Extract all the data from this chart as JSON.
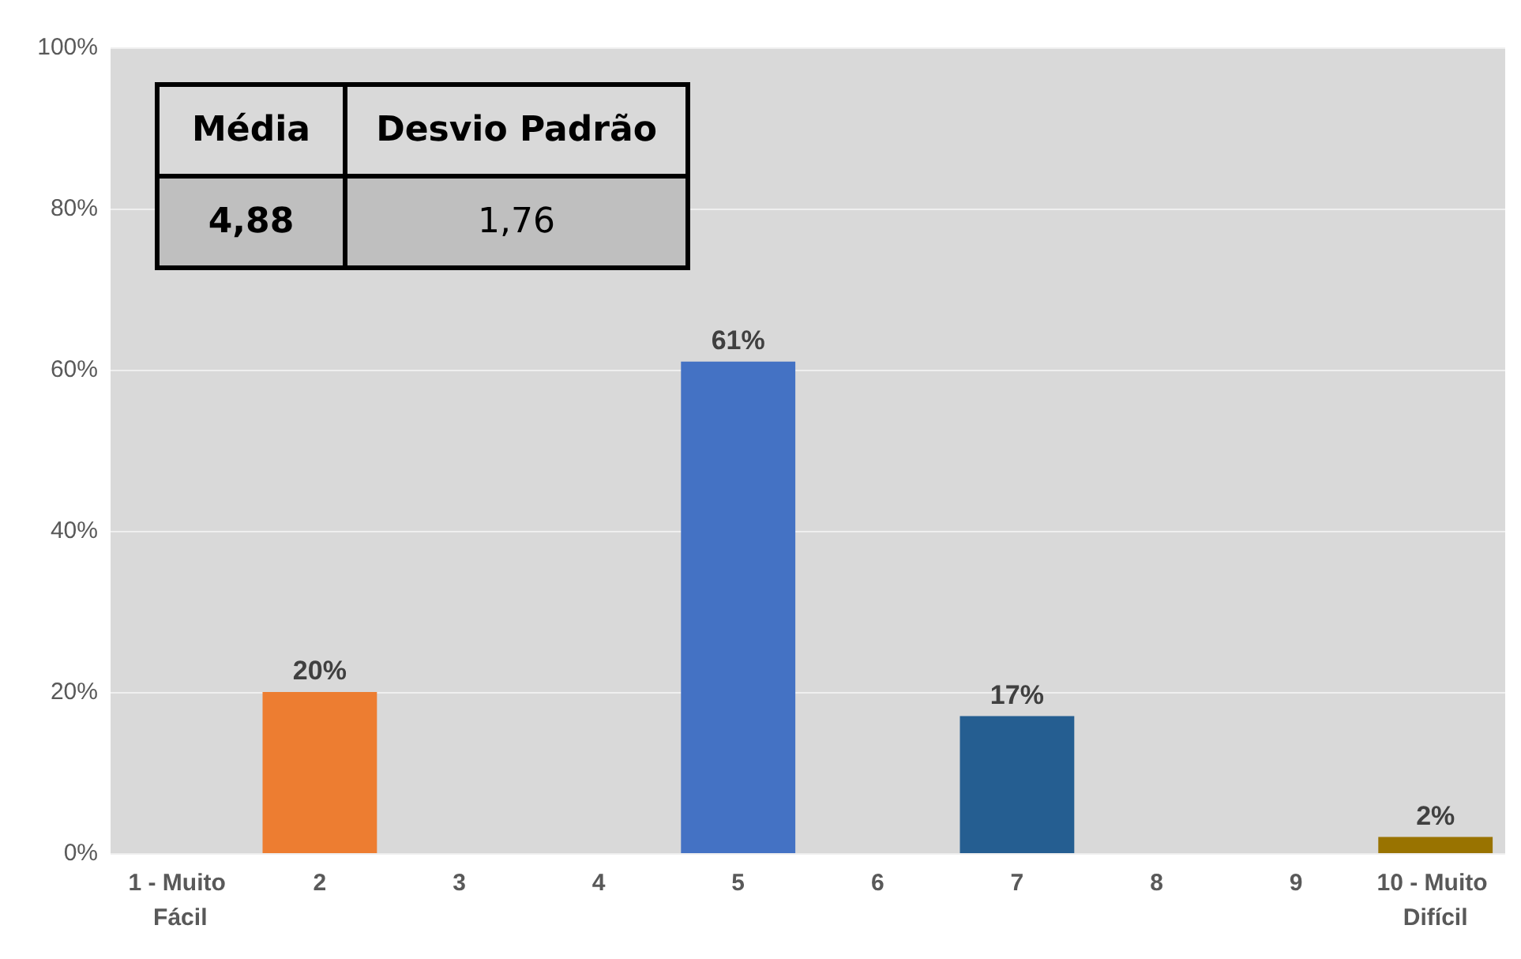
{
  "chart_data": {
    "type": "bar",
    "categories": [
      "1 - Muito Fácil",
      "2",
      "3",
      "4",
      "5",
      "6",
      "7",
      "8",
      "9",
      "10 - Muito Difícil"
    ],
    "values": [
      0,
      20,
      0,
      0,
      61,
      0,
      17,
      0,
      0,
      2
    ],
    "colors": [
      "#a5a5a5",
      "#ed7d31",
      "#a5a5a5",
      "#ffc000",
      "#4472c4",
      "#70ad47",
      "#255e91",
      "#9e480e",
      "#636363",
      "#997300"
    ],
    "value_labels": [
      null,
      "20%",
      null,
      null,
      "61%",
      null,
      "17%",
      null,
      null,
      "2%"
    ],
    "ylim": [
      0,
      100
    ],
    "yticks": [
      {
        "value": 0,
        "label": "0%"
      },
      {
        "value": 20,
        "label": "20%"
      },
      {
        "value": 40,
        "label": "40%"
      },
      {
        "value": 60,
        "label": "60%"
      },
      {
        "value": 80,
        "label": "80%"
      },
      {
        "value": 100,
        "label": "100%"
      }
    ],
    "grid": "y",
    "annotations": [
      "Média",
      "Desvio Padrão",
      "4,88",
      "1,76"
    ]
  }
}
